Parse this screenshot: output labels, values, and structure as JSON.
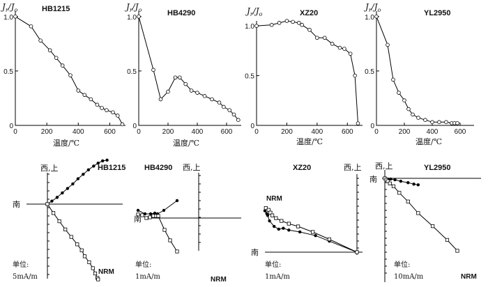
{
  "figure": {
    "temp_axis_label": "温度/℃",
    "ylabel_main": "J",
    "ylabel_sub_r": "r",
    "ylabel_slash": "/",
    "ylabel_sub_o": "o",
    "dir_west_up": "西,上",
    "dir_south": "南",
    "nrm_label": "NRM",
    "unit_prefix": "单位:"
  },
  "chart_data": [
    {
      "type": "line",
      "panel": "thermal-demag",
      "title": "HB1215",
      "xlabel": "温度/℃",
      "ylabel": "Jr/Jo",
      "xlim": [
        0,
        700
      ],
      "ylim": [
        0,
        1.05
      ],
      "xticks": [
        "0",
        "200",
        "400",
        "600"
      ],
      "yticks": [
        "0",
        "0.5",
        "1.0"
      ],
      "x": [
        0,
        100,
        160,
        220,
        260,
        300,
        350,
        400,
        440,
        480,
        520,
        550,
        580,
        620,
        650,
        680
      ],
      "values": [
        1.0,
        0.91,
        0.78,
        0.69,
        0.62,
        0.55,
        0.46,
        0.32,
        0.28,
        0.24,
        0.19,
        0.16,
        0.14,
        0.12,
        0.09,
        0.01
      ]
    },
    {
      "type": "line",
      "panel": "thermal-demag",
      "title": "HB4290",
      "xlabel": "温度/℃",
      "ylabel": "Jr/Jo",
      "xlim": [
        0,
        700
      ],
      "ylim": [
        0,
        1.05
      ],
      "xticks": [
        "0",
        "200",
        "400",
        "600"
      ],
      "yticks": [
        "0",
        "0.5",
        "1.0"
      ],
      "x": [
        0,
        100,
        150,
        200,
        250,
        280,
        320,
        360,
        400,
        450,
        500,
        550,
        580,
        620,
        650,
        680
      ],
      "values": [
        1.0,
        0.51,
        0.24,
        0.31,
        0.44,
        0.44,
        0.38,
        0.32,
        0.3,
        0.27,
        0.24,
        0.21,
        0.17,
        0.14,
        0.1,
        0.05
      ]
    },
    {
      "type": "line",
      "panel": "thermal-demag",
      "title": "XZ20",
      "xlabel": "温度/℃",
      "ylabel": "Jr/Jo",
      "xlim": [
        0,
        700
      ],
      "ylim": [
        0,
        1.05
      ],
      "xticks": [
        "0",
        "200",
        "400",
        "600"
      ],
      "yticks": [
        "0",
        "0.5",
        "1.0"
      ],
      "x": [
        0,
        100,
        150,
        200,
        240,
        280,
        300,
        350,
        400,
        450,
        500,
        550,
        580,
        620,
        650,
        670
      ],
      "values": [
        1.0,
        1.01,
        1.03,
        1.05,
        1.04,
        1.03,
        1.01,
        0.96,
        0.88,
        0.88,
        0.82,
        0.78,
        0.77,
        0.72,
        0.5,
        0.02
      ]
    },
    {
      "type": "line",
      "panel": "thermal-demag",
      "title": "YL2950",
      "xlabel": "温度/℃",
      "ylabel": "Jr/Jo",
      "xlim": [
        0,
        700
      ],
      "ylim": [
        0,
        1.05
      ],
      "xticks": [
        "0",
        "200",
        "400",
        "600"
      ],
      "yticks": [
        "0",
        "0.5",
        "1.0"
      ],
      "x": [
        0,
        80,
        120,
        160,
        200,
        230,
        260,
        300,
        350,
        400,
        450,
        500,
        540,
        560,
        580
      ],
      "values": [
        1.0,
        0.74,
        0.42,
        0.3,
        0.23,
        0.15,
        0.1,
        0.07,
        0.05,
        0.03,
        0.03,
        0.03,
        0.02,
        0.02,
        0.02
      ]
    },
    {
      "type": "scatter",
      "panel": "zijderveld",
      "title": "HB1215",
      "unit": "5mA/m",
      "series": [
        {
          "name": "west-up",
          "symbol": "filled",
          "x": [
            0,
            6,
            13,
            20,
            27,
            34,
            41,
            48,
            55,
            62,
            68,
            74,
            80
          ],
          "y": [
            0,
            4,
            9,
            15,
            21,
            27,
            34,
            40,
            46,
            51,
            55,
            58,
            59
          ]
        },
        {
          "name": "south-down",
          "symbol": "open-square",
          "x": [
            0,
            8,
            16,
            24,
            32,
            40,
            46,
            50,
            56,
            61,
            64,
            67,
            68
          ],
          "y": [
            0,
            -12,
            -23,
            -34,
            -44,
            -54,
            -62,
            -70,
            -78,
            -86,
            -93,
            -99,
            -101
          ]
        }
      ]
    },
    {
      "type": "scatter",
      "panel": "zijderveld",
      "title": "HB4290",
      "unit": "1mA/m",
      "series": [
        {
          "name": "west-up",
          "symbol": "filled",
          "x": [
            -34,
            -24,
            -16,
            -10,
            -6,
            3,
            22
          ],
          "y": [
            8,
            3,
            3,
            4,
            3,
            8,
            22
          ]
        },
        {
          "name": "south-down",
          "symbol": "open-square",
          "x": [
            -34,
            -28,
            -22,
            -17,
            -12,
            -8,
            -5,
            4,
            12,
            22
          ],
          "y": [
            2,
            1,
            -3,
            -2,
            0,
            0,
            0,
            -20,
            -35,
            -51
          ]
        }
      ]
    },
    {
      "type": "scatter",
      "panel": "zijderveld",
      "title": "XZ20",
      "unit": "1mA/m",
      "series": [
        {
          "name": "west-up",
          "symbol": "filled",
          "x": [
            -100,
            -98,
            -97,
            -95,
            -90,
            -85,
            -80,
            -74,
            -62,
            -45,
            -30,
            0
          ],
          "y": [
            45,
            42,
            40,
            34,
            28,
            25,
            26,
            24,
            22,
            18,
            12,
            0
          ]
        },
        {
          "name": "south-down",
          "symbol": "open-square",
          "x": [
            -99,
            -96,
            -94,
            -92,
            -88,
            -82,
            -74,
            -64,
            -48,
            -30,
            0
          ],
          "y": [
            48,
            46,
            43,
            40,
            37,
            34,
            31,
            28,
            22,
            14,
            0
          ]
        }
      ]
    },
    {
      "type": "scatter",
      "panel": "zijderveld",
      "title": "YL2950",
      "unit": "10mA/m",
      "series": [
        {
          "name": "west-up",
          "symbol": "filled",
          "x": [
            0,
            4,
            8,
            14,
            22,
            32,
            40,
            46
          ],
          "y": [
            0,
            -1,
            -1,
            -2,
            -4,
            -6,
            -8,
            -9
          ]
        },
        {
          "name": "south-down",
          "symbol": "open-square",
          "x": [
            0,
            2,
            4,
            7,
            12,
            20,
            32,
            46,
            66,
            86,
            100
          ],
          "y": [
            0,
            -2,
            -4,
            -7,
            -11,
            -20,
            -32,
            -48,
            -66,
            -85,
            -100
          ]
        }
      ]
    }
  ]
}
